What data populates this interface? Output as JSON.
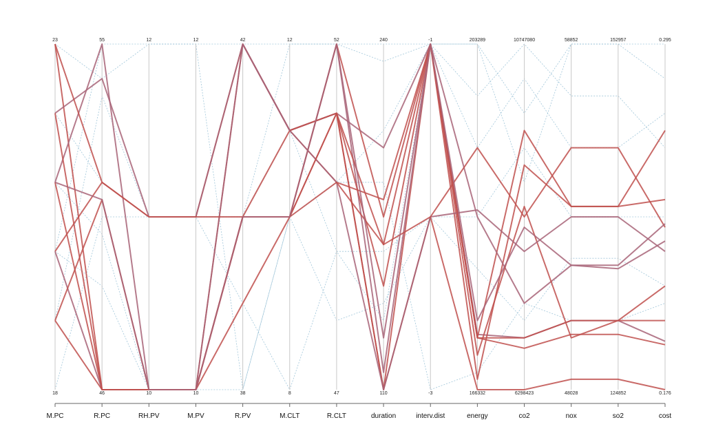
{
  "chart_data": {
    "type": "parallel-coordinates",
    "axes": [
      {
        "name": "M.PC",
        "min": "18",
        "max": "23"
      },
      {
        "name": "R.PC",
        "min": "46",
        "max": "55"
      },
      {
        "name": "RH.PV",
        "min": "10",
        "max": "12"
      },
      {
        "name": "M.PV",
        "min": "10",
        "max": "12"
      },
      {
        "name": "R.PV",
        "min": "38",
        "max": "42"
      },
      {
        "name": "M.CLT",
        "min": "8",
        "max": "12"
      },
      {
        "name": "R.CLT",
        "min": "47",
        "max": "52"
      },
      {
        "name": "duration",
        "min": "110",
        "max": "240"
      },
      {
        "name": "interv.dist",
        "min": "-3",
        "max": "-1"
      },
      {
        "name": "energy",
        "min": "166332",
        "max": "203289"
      },
      {
        "name": "co2",
        "min": "6298423",
        "max": "10747080"
      },
      {
        "name": "nox",
        "min": "48028",
        "max": "58852"
      },
      {
        "name": "so2",
        "min": "124852",
        "max": "152957"
      },
      {
        "name": "cost",
        "min": "0.176",
        "max": "0.295"
      }
    ],
    "colors": {
      "highlight": "#c0504d",
      "highlight_alt": "#a86478",
      "context": "#7fb2cc",
      "axis": "#c8c8c8"
    },
    "highlighted_lines": [
      [
        1.0,
        0.0,
        0.0,
        0.0,
        1.0,
        0.75,
        0.8,
        0.0,
        1.0,
        0.15,
        0.12,
        0.16,
        0.16,
        0.13
      ],
      [
        0.6,
        1.0,
        0.0,
        0.0,
        0.5,
        0.5,
        1.0,
        0.05,
        1.0,
        0.16,
        0.15,
        0.2,
        0.2,
        0.14
      ],
      [
        0.6,
        0.0,
        0.0,
        0.0,
        0.5,
        0.5,
        1.0,
        0.5,
        1.0,
        0.03,
        0.65,
        0.53,
        0.53,
        0.55
      ],
      [
        0.4,
        0.6,
        0.5,
        0.5,
        1.0,
        0.75,
        0.6,
        0.55,
        1.0,
        0.15,
        0.75,
        0.53,
        0.53,
        0.75
      ],
      [
        0.4,
        0.0,
        0.0,
        0.0,
        1.0,
        0.75,
        0.8,
        0.7,
        1.0,
        0.5,
        0.25,
        0.36,
        0.35,
        0.43
      ],
      [
        0.2,
        0.55,
        0.0,
        0.0,
        0.25,
        0.5,
        0.8,
        0.42,
        1.0,
        0.1,
        0.53,
        0.15,
        0.2,
        0.2
      ],
      [
        0.2,
        0.0,
        0.0,
        0.0,
        0.5,
        0.75,
        0.8,
        0.0,
        0.5,
        0.0,
        0.0,
        0.03,
        0.03,
        0.0
      ],
      [
        0.8,
        0.9,
        0.5,
        0.5,
        1.0,
        0.75,
        0.6,
        0.0,
        0.5,
        0.52,
        0.4,
        0.5,
        0.5,
        0.4
      ],
      [
        1.0,
        0.6,
        0.5,
        0.5,
        0.5,
        0.5,
        0.6,
        0.42,
        0.5,
        0.7,
        0.5,
        0.7,
        0.7,
        0.47
      ],
      [
        0.8,
        0.0,
        0.0,
        0.0,
        0.5,
        0.5,
        0.8,
        0.3,
        1.0,
        0.15,
        0.15,
        0.2,
        0.2,
        0.3
      ],
      [
        0.6,
        0.55,
        0.0,
        0.0,
        0.5,
        0.5,
        1.0,
        0.15,
        1.0,
        0.2,
        0.47,
        0.36,
        0.36,
        0.48
      ]
    ],
    "context_lines": [
      [
        0.0,
        0.5,
        0.5,
        0.5,
        0.5,
        1.0,
        1.0,
        1.0,
        1.0,
        1.0,
        0.8,
        1.0,
        1.0,
        1.0
      ],
      [
        0.4,
        1.0,
        1.0,
        1.0,
        1.0,
        1.0,
        1.0,
        0.95,
        1.0,
        0.85,
        1.0,
        0.85,
        0.85,
        0.7
      ],
      [
        0.8,
        0.6,
        0.5,
        0.5,
        0.25,
        0.0,
        0.4,
        0.4,
        0.5,
        0.5,
        0.7,
        0.5,
        0.5,
        0.5
      ],
      [
        1.0,
        0.9,
        1.0,
        1.0,
        0.0,
        0.5,
        0.2,
        0.25,
        0.5,
        0.35,
        0.2,
        0.38,
        0.38,
        0.3
      ],
      [
        0.6,
        0.45,
        0.0,
        0.0,
        0.5,
        0.5,
        0.6,
        0.6,
        0.0,
        0.05,
        0.25,
        0.2,
        0.2,
        0.25
      ],
      [
        0.2,
        0.85,
        0.5,
        0.5,
        0.5,
        0.75,
        0.4,
        0.2,
        1.0,
        0.7,
        0.9,
        0.7,
        0.7,
        0.8
      ],
      [
        0.4,
        0.3,
        0.0,
        0.0,
        0.0,
        0.5,
        0.6,
        0.75,
        1.0,
        1.0,
        0.6,
        1.0,
        1.0,
        0.9
      ]
    ]
  }
}
